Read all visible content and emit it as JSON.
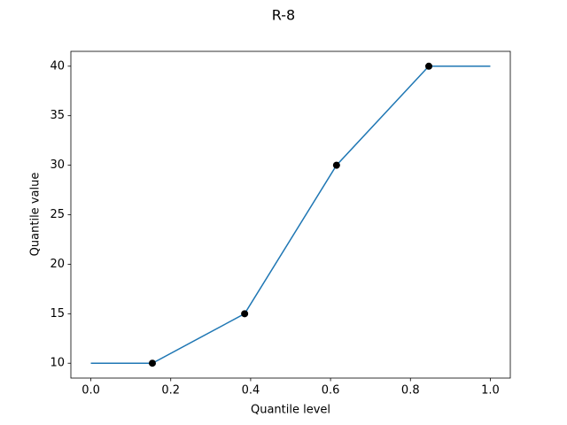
{
  "chart_data": {
    "type": "line",
    "title": "R-8",
    "xlabel": "Quantile level",
    "ylabel": "Quantile value",
    "series": [
      {
        "style": "line",
        "color": "#1f77b4",
        "x": [
          0,
          0.154,
          0.385,
          0.615,
          0.846,
          1
        ],
        "values": [
          10,
          10,
          15,
          30,
          40,
          40
        ]
      },
      {
        "style": "scatter",
        "color": "#000000",
        "x": [
          0.154,
          0.385,
          0.615,
          0.846
        ],
        "values": [
          10,
          15,
          30,
          40
        ]
      }
    ],
    "xlim": [
      -0.05,
      1.05
    ],
    "xticks": [
      {
        "value": 0,
        "label": "0.0"
      },
      0.2,
      0.4,
      0.6,
      0.8,
      {
        "value": 1,
        "label": "1.0"
      }
    ],
    "ylim": [
      8.5,
      41.5
    ],
    "yticks": [
      10,
      15,
      20,
      25,
      30,
      35,
      40
    ]
  }
}
